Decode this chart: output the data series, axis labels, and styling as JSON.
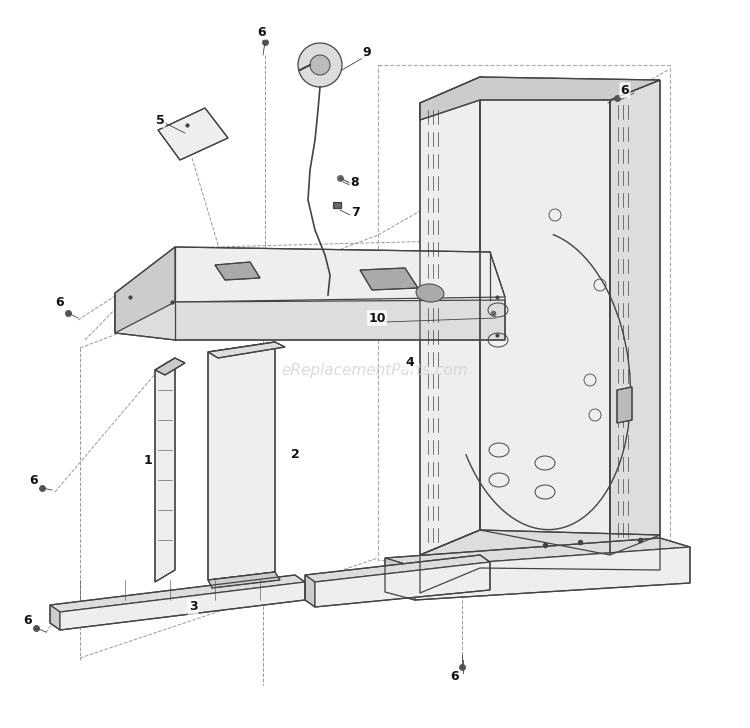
{
  "background_color": "#ffffff",
  "watermark": "eReplacementParts.com",
  "watermark_color": "#cccccc",
  "watermark_fontsize": 11,
  "lc": "#444444",
  "dlc": "#999999",
  "fc_light": "#eeeeee",
  "fc_mid": "#dddddd",
  "fc_dark": "#cccccc"
}
